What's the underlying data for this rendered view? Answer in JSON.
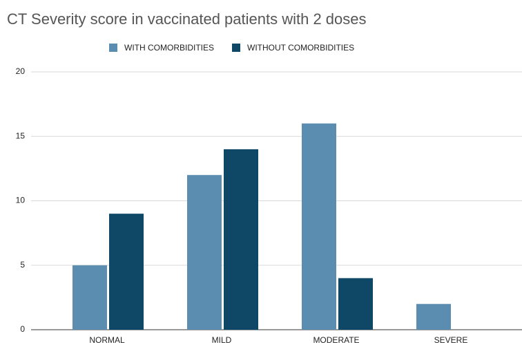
{
  "chart_data": {
    "type": "bar",
    "title": "CT Severity score in vaccinated patients with 2 doses",
    "categories": [
      "NORMAL",
      "MILD",
      "MODERATE",
      "SEVERE"
    ],
    "series": [
      {
        "name": "WITH COMORBIDITIES",
        "color": "#5b8db1",
        "values": [
          5,
          12,
          16,
          2
        ]
      },
      {
        "name": "WITHOUT COMORBIDITIES",
        "color": "#0f4766",
        "values": [
          9,
          14,
          4,
          0
        ]
      }
    ],
    "ylim": [
      0,
      20
    ],
    "yticks": [
      0,
      5,
      10,
      15,
      20
    ],
    "grid": true,
    "legend": "top"
  }
}
